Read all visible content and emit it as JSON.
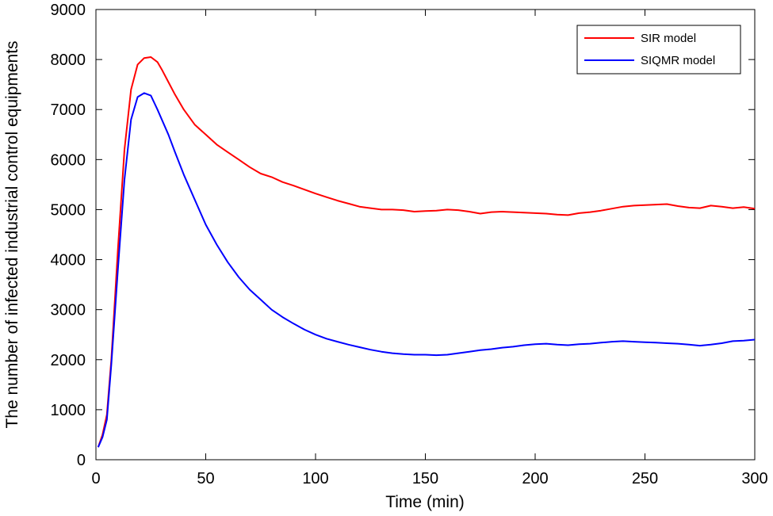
{
  "chart_data": {
    "type": "line",
    "title": "",
    "xlabel": "Time (min)",
    "ylabel": "The number of infected  industrial control equipments",
    "xlim": [
      0,
      300
    ],
    "ylim": [
      0,
      9000
    ],
    "xticks": [
      0,
      50,
      100,
      150,
      200,
      250,
      300
    ],
    "yticks": [
      0,
      1000,
      2000,
      3000,
      4000,
      5000,
      6000,
      7000,
      8000,
      9000
    ],
    "grid": false,
    "legend_position": "top-right",
    "colors": {
      "sir": "#ff0000",
      "siqmr": "#0000ff",
      "axis": "#000000"
    },
    "series": [
      {
        "name": "SIR model",
        "color": "#ff0000",
        "x": [
          1,
          3,
          5,
          7,
          10,
          13,
          16,
          19,
          22,
          25,
          28,
          30,
          33,
          36,
          40,
          45,
          50,
          55,
          60,
          65,
          70,
          75,
          80,
          85,
          90,
          95,
          100,
          105,
          110,
          115,
          120,
          125,
          130,
          135,
          140,
          145,
          150,
          155,
          160,
          165,
          170,
          175,
          180,
          185,
          190,
          195,
          200,
          205,
          210,
          215,
          220,
          225,
          230,
          235,
          240,
          245,
          250,
          255,
          260,
          265,
          270,
          275,
          280,
          285,
          290,
          295,
          300
        ],
        "y": [
          250,
          500,
          900,
          2000,
          4200,
          6200,
          7400,
          7900,
          8030,
          8050,
          7950,
          7800,
          7550,
          7300,
          7000,
          6700,
          6500,
          6300,
          6150,
          6000,
          5850,
          5720,
          5650,
          5550,
          5480,
          5400,
          5320,
          5250,
          5180,
          5120,
          5060,
          5030,
          5000,
          5000,
          4990,
          4960,
          4970,
          4980,
          5000,
          4990,
          4960,
          4920,
          4950,
          4960,
          4950,
          4940,
          4930,
          4920,
          4900,
          4890,
          4930,
          4950,
          4980,
          5020,
          5060,
          5080,
          5090,
          5100,
          5110,
          5070,
          5040,
          5030,
          5080,
          5060,
          5030,
          5050,
          5020
        ]
      },
      {
        "name": "SIQMR model",
        "color": "#0000ff",
        "x": [
          1,
          3,
          5,
          7,
          10,
          13,
          16,
          19,
          22,
          25,
          28,
          30,
          33,
          36,
          40,
          45,
          50,
          55,
          60,
          65,
          70,
          75,
          80,
          85,
          90,
          95,
          100,
          105,
          110,
          115,
          120,
          125,
          130,
          135,
          140,
          145,
          150,
          155,
          160,
          165,
          170,
          175,
          180,
          185,
          190,
          195,
          200,
          205,
          210,
          215,
          220,
          225,
          230,
          235,
          240,
          245,
          250,
          255,
          260,
          265,
          270,
          275,
          280,
          285,
          290,
          295,
          300
        ],
        "y": [
          250,
          450,
          800,
          1900,
          3800,
          5600,
          6800,
          7250,
          7330,
          7280,
          7000,
          6800,
          6500,
          6150,
          5700,
          5200,
          4700,
          4300,
          3950,
          3650,
          3400,
          3200,
          3000,
          2850,
          2720,
          2600,
          2500,
          2420,
          2360,
          2300,
          2250,
          2200,
          2160,
          2130,
          2110,
          2100,
          2100,
          2090,
          2100,
          2130,
          2160,
          2190,
          2210,
          2240,
          2260,
          2290,
          2310,
          2320,
          2300,
          2290,
          2310,
          2320,
          2340,
          2360,
          2370,
          2360,
          2350,
          2340,
          2330,
          2320,
          2300,
          2280,
          2300,
          2330,
          2370,
          2380,
          2400
        ]
      }
    ]
  }
}
